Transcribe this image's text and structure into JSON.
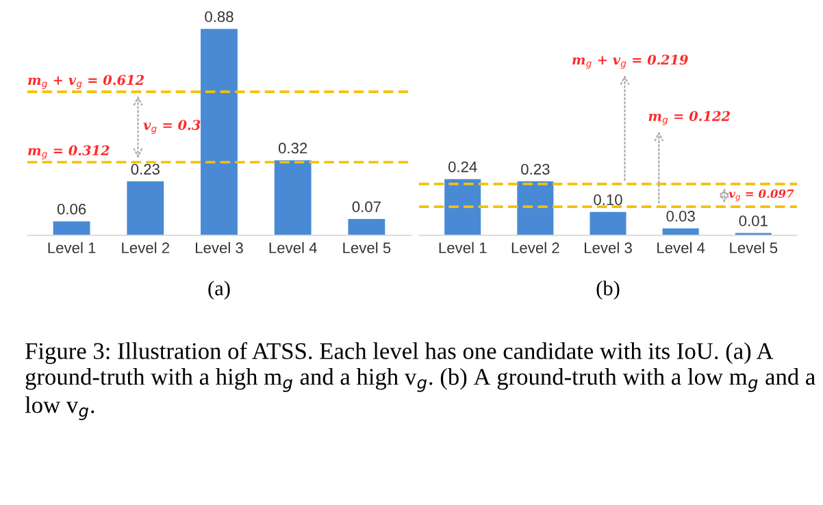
{
  "chart_data": [
    {
      "type": "bar",
      "categories": [
        "Level 1",
        "Level 2",
        "Level 3",
        "Level 4",
        "Level 5"
      ],
      "values": [
        0.06,
        0.23,
        0.88,
        0.32,
        0.07
      ],
      "color": "#4a8ad4",
      "value_labels": [
        "0.06",
        "0.23",
        "0.88",
        "0.32",
        "0.07"
      ],
      "ref_lines": [
        {
          "axis": "y",
          "value": 0.612,
          "label": "m$_{g}$ + v$_{g}$ = 0.612",
          "color": "#f5c000",
          "line_style": "dashed"
        },
        {
          "axis": "y",
          "value": 0.312,
          "label": "m$_{g}$ = 0.312",
          "color": "#f5c000",
          "line_style": "dashed"
        }
      ],
      "annotations": [
        "v$_{g}$ = 0.3",
        "(a)"
      ],
      "grid": false,
      "legend": false
    },
    {
      "type": "bar",
      "categories": [
        "Level 1",
        "Level 2",
        "Level 3",
        "Level 4",
        "Level 5"
      ],
      "values": [
        0.24,
        0.23,
        0.1,
        0.03,
        0.01
      ],
      "color": "#4a8ad4",
      "value_labels": [
        "0.24",
        "0.23",
        "0.10",
        "0.03",
        "0.01"
      ],
      "ref_lines": [
        {
          "axis": "y",
          "value": 0.219,
          "label": "m$_{g}$ + v$_{g}$ = 0.219",
          "color": "#f5c000",
          "line_style": "dashed"
        },
        {
          "axis": "y",
          "value": 0.122,
          "label": "m$_{g}$ = 0.122",
          "color": "#f5c000",
          "line_style": "dashed"
        }
      ],
      "annotations": [
        "v$_{g}$ = 0.097",
        "(b)",
        "Figure 3: Illustration of ATSS. Each level has one candidate with its IoU. (a) A ground-truth with a high m$_{g}$ and a high v$_{g}$. (b) A ground-truth with a low m$_{g}$ and a low v$_{g}$."
      ],
      "grid": false,
      "legend": false
    }
  ]
}
